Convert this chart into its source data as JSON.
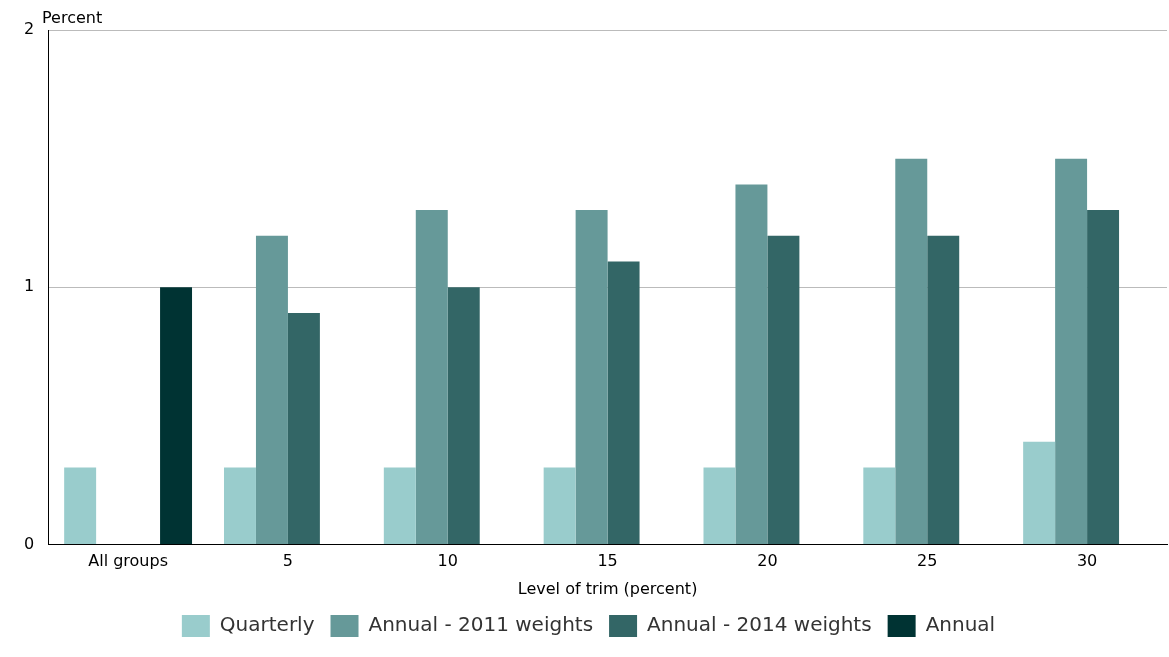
{
  "chart_data": {
    "type": "bar",
    "ylabel": "Percent",
    "xlabel": "Level of trim (percent)",
    "categories": [
      "All groups",
      "5",
      "10",
      "15",
      "20",
      "25",
      "30"
    ],
    "series": [
      {
        "name": "Quarterly",
        "color": "#99cccc",
        "values": [
          0.3,
          0.3,
          0.3,
          0.3,
          0.3,
          0.3,
          0.4
        ]
      },
      {
        "name": "Annual - 2011 weights",
        "color": "#669999",
        "values": [
          null,
          1.2,
          1.3,
          1.3,
          1.4,
          1.5,
          1.5
        ]
      },
      {
        "name": "Annual - 2014 weights",
        "color": "#336666",
        "values": [
          null,
          0.9,
          1.0,
          1.1,
          1.2,
          1.2,
          1.3
        ]
      },
      {
        "name": "Annual",
        "color": "#003333",
        "values": [
          1.0,
          null,
          null,
          null,
          null,
          null,
          null
        ]
      }
    ],
    "ylim": [
      0,
      2
    ],
    "yticks": [
      0,
      1,
      2
    ],
    "grid": "y",
    "legend": "bottom"
  }
}
